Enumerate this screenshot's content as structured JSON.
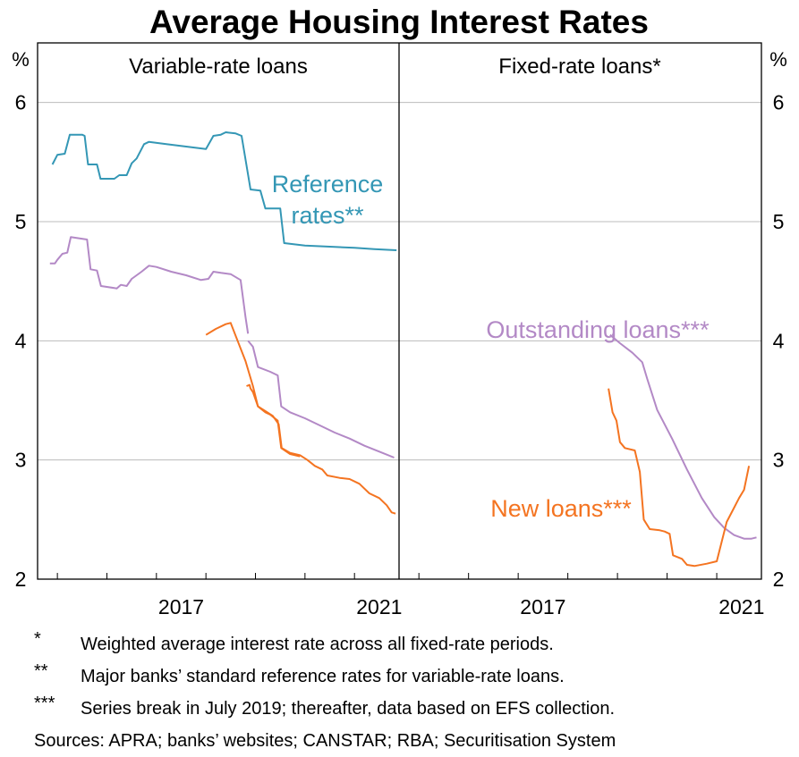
{
  "chart_data": {
    "type": "line",
    "title": "Average Housing Interest Rates",
    "y_unit_left": "%",
    "y_unit_right": "%",
    "ylim": [
      2,
      6.5
    ],
    "yticks": [
      "2",
      "3",
      "4",
      "5",
      "6"
    ],
    "colors": {
      "reference": "#3497b5",
      "outstanding": "#b389c6",
      "new": "#f47421",
      "grid": "#bcbcbc",
      "axis": "#000000"
    },
    "panels": [
      {
        "title": "Variable-rate loans",
        "xlim": [
          2014.6,
          2021.9
        ],
        "xticks": [
          2017,
          2021
        ],
        "xtick_labels": [
          "2017",
          "2021"
        ],
        "annotations": {
          "reference": "Reference rates**"
        },
        "series": [
          {
            "name": "Reference rates**",
            "key": "reference",
            "points": [
              [
                2014.9,
                5.48
              ],
              [
                2015.0,
                5.56
              ],
              [
                2015.15,
                5.57
              ],
              [
                2015.25,
                5.73
              ],
              [
                2015.5,
                5.73
              ],
              [
                2015.55,
                5.72
              ],
              [
                2015.62,
                5.48
              ],
              [
                2015.8,
                5.48
              ],
              [
                2015.87,
                5.36
              ],
              [
                2016.15,
                5.36
              ],
              [
                2016.25,
                5.39
              ],
              [
                2016.4,
                5.39
              ],
              [
                2016.5,
                5.49
              ],
              [
                2016.6,
                5.53
              ],
              [
                2016.75,
                5.65
              ],
              [
                2016.85,
                5.67
              ],
              [
                2017.2,
                5.65
              ],
              [
                2018.0,
                5.61
              ],
              [
                2018.15,
                5.72
              ],
              [
                2018.3,
                5.73
              ],
              [
                2018.4,
                5.75
              ],
              [
                2018.6,
                5.74
              ],
              [
                2018.72,
                5.72
              ],
              [
                2018.9,
                5.27
              ],
              [
                2019.1,
                5.26
              ],
              [
                2019.2,
                5.11
              ],
              [
                2019.5,
                5.11
              ],
              [
                2019.58,
                4.82
              ],
              [
                2020.0,
                4.8
              ],
              [
                2020.5,
                4.79
              ],
              [
                2021.0,
                4.78
              ],
              [
                2021.4,
                4.77
              ],
              [
                2021.85,
                4.76
              ]
            ]
          },
          {
            "name": "Outstanding loans (pre-break)",
            "key": "outstanding",
            "points": [
              [
                2014.85,
                4.65
              ],
              [
                2014.95,
                4.65
              ],
              [
                2015.0,
                4.68
              ],
              [
                2015.1,
                4.73
              ],
              [
                2015.2,
                4.74
              ],
              [
                2015.27,
                4.87
              ],
              [
                2015.6,
                4.85
              ],
              [
                2015.67,
                4.6
              ],
              [
                2015.8,
                4.59
              ],
              [
                2015.88,
                4.46
              ],
              [
                2016.2,
                4.44
              ],
              [
                2016.28,
                4.47
              ],
              [
                2016.4,
                4.46
              ],
              [
                2016.5,
                4.52
              ],
              [
                2016.7,
                4.58
              ],
              [
                2016.85,
                4.63
              ],
              [
                2017.0,
                4.62
              ],
              [
                2017.3,
                4.58
              ],
              [
                2017.6,
                4.55
              ],
              [
                2017.9,
                4.51
              ],
              [
                2018.05,
                4.52
              ],
              [
                2018.15,
                4.58
              ],
              [
                2018.3,
                4.57
              ],
              [
                2018.5,
                4.56
              ],
              [
                2018.7,
                4.51
              ],
              [
                2018.8,
                4.2
              ],
              [
                2018.85,
                4.06
              ]
            ]
          },
          {
            "name": "Outstanding loans (post-break)",
            "key": "outstanding",
            "points": [
              [
                2018.85,
                4.0
              ],
              [
                2018.95,
                3.95
              ],
              [
                2019.05,
                3.78
              ],
              [
                2019.3,
                3.74
              ],
              [
                2019.45,
                3.71
              ],
              [
                2019.52,
                3.45
              ],
              [
                2019.7,
                3.4
              ],
              [
                2020.0,
                3.35
              ],
              [
                2020.3,
                3.29
              ],
              [
                2020.6,
                3.23
              ],
              [
                2020.9,
                3.18
              ],
              [
                2021.2,
                3.12
              ],
              [
                2021.5,
                3.07
              ],
              [
                2021.8,
                3.02
              ]
            ]
          },
          {
            "name": "New loans (pre-break)",
            "key": "new",
            "points": [
              [
                2018.0,
                4.05
              ],
              [
                2018.2,
                4.1
              ],
              [
                2018.4,
                4.14
              ],
              [
                2018.5,
                4.15
              ],
              [
                2018.65,
                3.99
              ],
              [
                2018.8,
                3.83
              ],
              [
                2018.95,
                3.62
              ],
              [
                2019.05,
                3.45
              ],
              [
                2019.2,
                3.4
              ],
              [
                2019.3,
                3.38
              ],
              [
                2019.45,
                3.33
              ],
              [
                2019.52,
                3.1
              ],
              [
                2019.7,
                3.05
              ],
              [
                2019.9,
                3.03
              ]
            ]
          },
          {
            "name": "New loans (post-break)",
            "key": "new",
            "points": [
              [
                2018.82,
                3.62
              ],
              [
                2018.88,
                3.63
              ],
              [
                2018.9,
                3.6
              ],
              [
                2018.95,
                3.57
              ],
              [
                2019.05,
                3.45
              ],
              [
                2019.2,
                3.41
              ],
              [
                2019.35,
                3.37
              ],
              [
                2019.47,
                3.3
              ],
              [
                2019.53,
                3.1
              ],
              [
                2019.7,
                3.06
              ],
              [
                2019.9,
                3.04
              ],
              [
                2020.05,
                3.0
              ],
              [
                2020.2,
                2.95
              ],
              [
                2020.35,
                2.92
              ],
              [
                2020.45,
                2.87
              ],
              [
                2020.7,
                2.85
              ],
              [
                2020.9,
                2.84
              ],
              [
                2021.1,
                2.8
              ],
              [
                2021.3,
                2.72
              ],
              [
                2021.5,
                2.68
              ],
              [
                2021.65,
                2.62
              ],
              [
                2021.75,
                2.56
              ],
              [
                2021.83,
                2.55
              ]
            ]
          }
        ]
      },
      {
        "title": "Fixed-rate loans*",
        "xlim": [
          2014.6,
          2021.9
        ],
        "xticks": [
          2017,
          2021
        ],
        "xtick_labels": [
          "2017",
          "2021"
        ],
        "annotations": {
          "outstanding": "Outstanding loans***",
          "new": "New loans***"
        },
        "series": [
          {
            "name": "Outstanding loans***",
            "key": "outstanding",
            "points": [
              [
                2018.85,
                4.05
              ],
              [
                2019.05,
                3.98
              ],
              [
                2019.3,
                3.9
              ],
              [
                2019.5,
                3.82
              ],
              [
                2019.6,
                3.68
              ],
              [
                2019.8,
                3.42
              ],
              [
                2020.1,
                3.18
              ],
              [
                2020.4,
                2.92
              ],
              [
                2020.7,
                2.68
              ],
              [
                2020.95,
                2.52
              ],
              [
                2021.15,
                2.43
              ],
              [
                2021.35,
                2.37
              ],
              [
                2021.55,
                2.34
              ],
              [
                2021.7,
                2.34
              ],
              [
                2021.8,
                2.35
              ]
            ]
          },
          {
            "name": "New loans***",
            "key": "new",
            "points": [
              [
                2018.82,
                3.6
              ],
              [
                2018.9,
                3.4
              ],
              [
                2018.98,
                3.33
              ],
              [
                2019.05,
                3.15
              ],
              [
                2019.15,
                3.1
              ],
              [
                2019.35,
                3.08
              ],
              [
                2019.45,
                2.9
              ],
              [
                2019.53,
                2.5
              ],
              [
                2019.65,
                2.42
              ],
              [
                2019.85,
                2.41
              ],
              [
                2019.95,
                2.4
              ],
              [
                2020.05,
                2.38
              ],
              [
                2020.12,
                2.2
              ],
              [
                2020.3,
                2.17
              ],
              [
                2020.4,
                2.12
              ],
              [
                2020.55,
                2.11
              ],
              [
                2020.8,
                2.13
              ],
              [
                2021.0,
                2.15
              ],
              [
                2021.2,
                2.48
              ],
              [
                2021.35,
                2.6
              ],
              [
                2021.45,
                2.68
              ],
              [
                2021.55,
                2.75
              ],
              [
                2021.65,
                2.95
              ]
            ]
          }
        ]
      }
    ]
  },
  "notes": [
    {
      "mark": "*",
      "text": "Weighted average interest rate across all fixed-rate periods."
    },
    {
      "mark": "**",
      "text": "Major banks’ standard reference rates for variable-rate loans."
    },
    {
      "mark": "***",
      "text": "Series break in July 2019; thereafter, data based on EFS collection."
    }
  ],
  "sources": "Sources: APRA; banks’ websites; CANSTAR; RBA; Securitisation System"
}
